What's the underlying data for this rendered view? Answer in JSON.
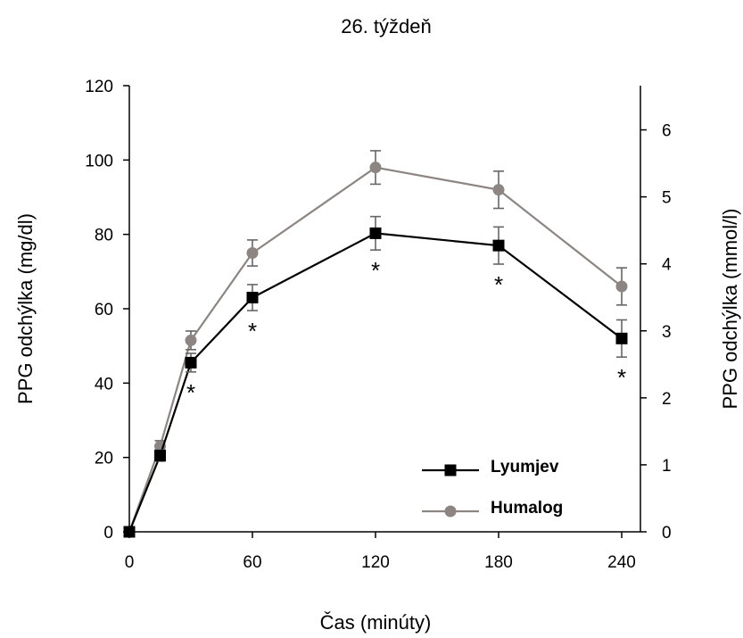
{
  "chart_data": {
    "type": "line",
    "title": "26. týždeň",
    "xlabel": "Čas (minúty)",
    "ylabel": "PPG odchýlka (mg/dl)",
    "ylabel_right": "PPG odchýlka (mmol/l)",
    "xlim": [
      0,
      240
    ],
    "ylim": [
      0,
      120
    ],
    "ylim_right": [
      0,
      6.66
    ],
    "x_ticks": [
      "0",
      "60",
      "120",
      "180",
      "240"
    ],
    "y_ticks": [
      "0",
      "20",
      "40",
      "60",
      "80",
      "100",
      "120"
    ],
    "y_ticks_right": [
      "0",
      "1",
      "2",
      "3",
      "4",
      "5",
      "6"
    ],
    "grid": false,
    "legend_position": "bottom-right",
    "series": [
      {
        "name": "Lyumjev",
        "color": "#000000",
        "marker": "square",
        "x": [
          0,
          15,
          30,
          60,
          120,
          180,
          240
        ],
        "y": [
          0,
          20.5,
          45.5,
          63,
          80.3,
          77,
          52
        ],
        "error": [
          0,
          1.5,
          2.5,
          3.5,
          4.5,
          5,
          5
        ]
      },
      {
        "name": "Humalog",
        "color": "#8c8581",
        "marker": "circle",
        "x": [
          0,
          15,
          30,
          60,
          120,
          180,
          240
        ],
        "y": [
          0,
          23,
          51.5,
          75,
          98,
          92,
          66
        ],
        "error": [
          0,
          1.5,
          2.5,
          3.5,
          4.5,
          5,
          5
        ]
      }
    ],
    "annotations": [
      {
        "text": "*",
        "x": 30
      },
      {
        "text": "*",
        "x": 60
      },
      {
        "text": "*",
        "x": 120
      },
      {
        "text": "*",
        "x": 180
      },
      {
        "text": "*",
        "x": 240
      }
    ]
  }
}
